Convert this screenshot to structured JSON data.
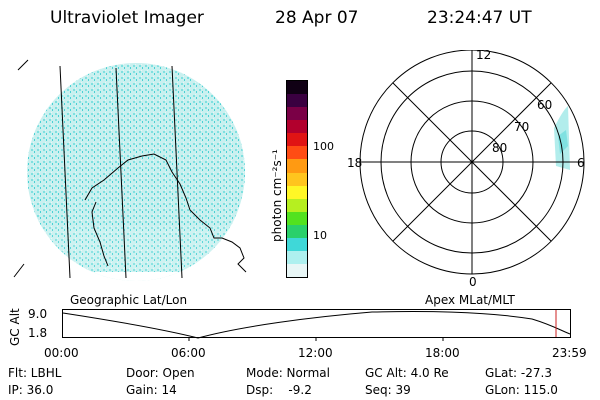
{
  "header": {
    "title": "Ultraviolet Imager",
    "date": "28 Apr 07",
    "time": "23:24:47 UT"
  },
  "geo_panel": {
    "caption": "Geographic Lat/Lon"
  },
  "colorbar": {
    "unit_label": "photon cm⁻²s⁻¹",
    "ticks": [
      "100",
      "10"
    ],
    "colors": [
      "#e8f6f6",
      "#aef0ef",
      "#3fd8d8",
      "#2ad06a",
      "#52e21f",
      "#b6ef20",
      "#fff726",
      "#ffc51e",
      "#ff9a12",
      "#ff4c14",
      "#e01414",
      "#b2002d",
      "#7a0046",
      "#3a0040",
      "#100014"
    ]
  },
  "polar_panel": {
    "caption": "Apex MLat/MLT",
    "mlt_labels": {
      "top": "12",
      "left": "18",
      "right": "6",
      "bottom": "0"
    },
    "lat_labels": [
      "60",
      "70",
      "80"
    ]
  },
  "altitude_plot": {
    "ylabel": "GC Alt",
    "yticks": [
      "9.0",
      "1.8"
    ],
    "xticks": [
      "00:00",
      "06:00",
      "12:00",
      "18:00",
      "23:59"
    ]
  },
  "info": {
    "filter": "Flt: LBHL",
    "ip": "IP: 36.0",
    "door": "Door: Open",
    "gain": "Gain: 14",
    "mode": "Mode: Normal",
    "dsp": "Dsp:    -9.2",
    "gc_alt": "GC Alt: 4.0 Re",
    "seq": "Seq: 39",
    "glat": "GLat: -27.3",
    "glon": "GLon: 115.0"
  },
  "colors": {
    "swath": "#9fe7e7",
    "swath_dark": "#3ccfd3",
    "marker": "#cc2222"
  }
}
